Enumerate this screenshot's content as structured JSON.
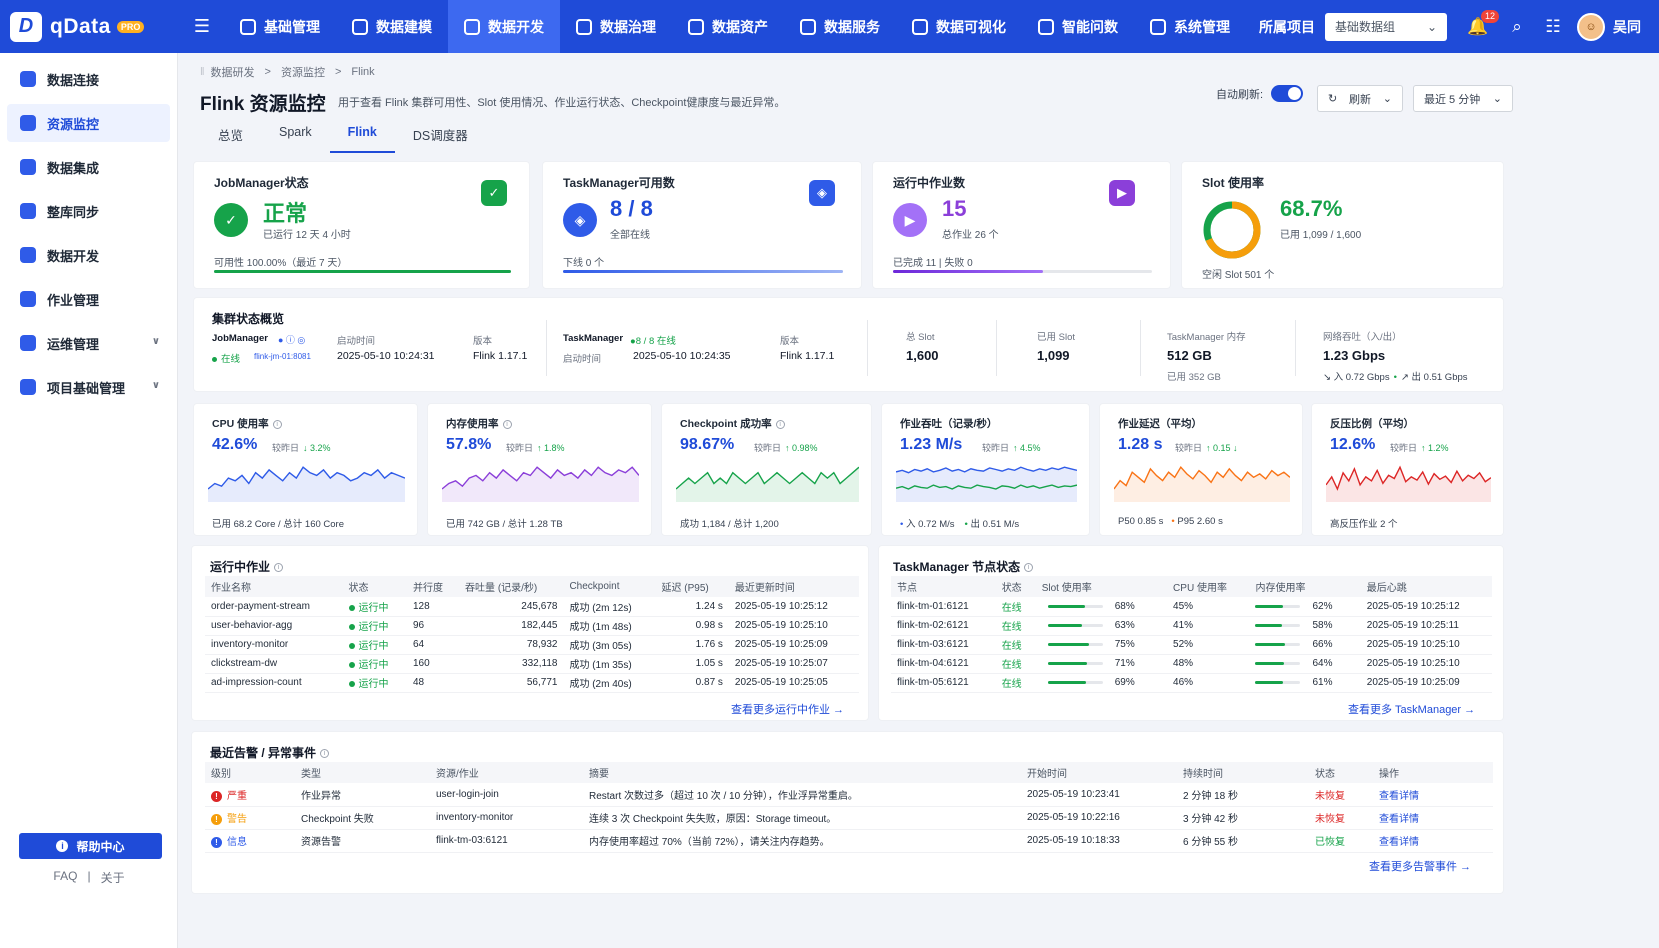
{
  "app": {
    "name": "qData",
    "pro_badge": "PRO",
    "logo_letter": "D"
  },
  "nav": [
    {
      "label": "基础管理"
    },
    {
      "label": "数据建模"
    },
    {
      "label": "数据开发",
      "active": true
    },
    {
      "label": "数据治理"
    },
    {
      "label": "数据资产"
    },
    {
      "label": "数据服务"
    },
    {
      "label": "数据可视化"
    },
    {
      "label": "智能问数"
    },
    {
      "label": "系统管理"
    }
  ],
  "topright": {
    "project_label": "所属项目",
    "project_value": "基础数据组",
    "notif_count": "12",
    "user_name": "吴同"
  },
  "sidebar": {
    "items": [
      {
        "label": "数据连接"
      },
      {
        "label": "资源监控",
        "active": true
      },
      {
        "label": "数据集成"
      },
      {
        "label": "整库同步"
      },
      {
        "label": "数据开发"
      },
      {
        "label": "作业管理"
      },
      {
        "label": "运维管理",
        "expandable": true
      },
      {
        "label": "项目基础管理",
        "expandable": true
      }
    ],
    "help": "帮助中心",
    "faq": "FAQ",
    "sep": "|",
    "about": "关于"
  },
  "page": {
    "breadcrumb": [
      "数据研发",
      "资源监控",
      "Flink"
    ],
    "title": "Flink 资源监控",
    "subtitle": "用于查看 Flink 集群可用性、Slot 使用情况、作业运行状态、Checkpoint健康度与最近异常。",
    "tabs": [
      {
        "label": "总览"
      },
      {
        "label": "Spark"
      },
      {
        "label": "Flink",
        "active": true
      },
      {
        "label": "DS调度器"
      }
    ],
    "auto_refresh_label": "自动刷新:",
    "refresh_label": "刷新",
    "time_range": "最近 5 分钟"
  },
  "kpis": {
    "jobmanager": {
      "title": "JobManager状态",
      "status": "正常",
      "uptime": "已运行 12 天 4 小时",
      "availability": "可用性 100.00%（最近 7 天）",
      "progress": 1.0
    },
    "taskmanager": {
      "title": "TaskManager可用数",
      "value": "8 / 8",
      "note": "全部在线",
      "offline": "下线 0 个",
      "progress": 1.0
    },
    "jobs": {
      "title": "运行中作业数",
      "value": "15",
      "total": "总作业 26 个",
      "done": "已完成 11 | 失败 0",
      "progress": 0.58
    },
    "slot": {
      "title": "Slot 使用率",
      "value": "68.7%",
      "used": "已用 1,099 / 1,600",
      "free": "空闲 Slot 501 个",
      "ratio": 0.687
    }
  },
  "overview": {
    "title": "集群状态概览",
    "jm_label": "JobManager",
    "jm_status": "在线",
    "jm_host": "flink-jm-01:8081",
    "start_label": "启动时间",
    "jm_start": "2025-05-10 10:24:31",
    "version_label": "版本",
    "jm_version": "Flink 1.17.1",
    "tm_label": "TaskManager",
    "tm_online": "8 / 8 在线",
    "tm_start_label": "启动时间",
    "tm_start": "2025-05-10 10:24:35",
    "tm_version_label": "版本",
    "tm_version": "Flink 1.17.1",
    "total_slot_label": "总 Slot",
    "total_slot": "1,600",
    "used_slot_label": "已用 Slot",
    "used_slot": "1,099",
    "tm_mem_label": "TaskManager 内存",
    "tm_mem": "512 GB",
    "tm_mem_used": "已用 352 GB",
    "net_label": "网络吞吐（入/出）",
    "net_val": "1.23 Gbps",
    "net_in": "入 0.72 Gbps",
    "net_out": "出 0.51 Gbps"
  },
  "metrics": [
    {
      "title": "CPU 使用率",
      "value": "42.6%",
      "cmp_label": "较昨日",
      "delta": "↓ 3.2%",
      "foot": "已用 68.2 Core / 总计 160 Core",
      "color": "#2f5be8",
      "series": [
        [
          38,
          40,
          39,
          42,
          41,
          43,
          40,
          44,
          42,
          45,
          43,
          41,
          44,
          42,
          46,
          44,
          43,
          45,
          42,
          44,
          43,
          41,
          42,
          44,
          43,
          45,
          42,
          44,
          43,
          42
        ]
      ]
    },
    {
      "title": "内存使用率",
      "value": "57.8%",
      "cmp_label": "较昨日",
      "delta": "↑ 1.8%",
      "foot": "已用 742 GB / 总计 1.28 TB",
      "color": "#8b3fd9",
      "series": [
        [
          52,
          54,
          55,
          53,
          56,
          57,
          55,
          58,
          56,
          59,
          57,
          55,
          58,
          57,
          60,
          58,
          56,
          59,
          57,
          58,
          56,
          59,
          57,
          60,
          58,
          57,
          59,
          58,
          60,
          57
        ]
      ]
    },
    {
      "title": "Checkpoint 成功率",
      "value": "98.67%",
      "cmp_label": "较昨日",
      "delta": "↑ 0.98%",
      "foot": "成功 1,184 / 总计 1,200",
      "color": "#16a34a",
      "series": [
        [
          96,
          97,
          98,
          97,
          98,
          99,
          97,
          98,
          97,
          99,
          98,
          97,
          98,
          99,
          97,
          98,
          99,
          98,
          97,
          98,
          99,
          98,
          97,
          99,
          98,
          99,
          97,
          98,
          99,
          100
        ]
      ]
    },
    {
      "title": "作业吞吐（记录/秒）",
      "value": "1.23 M/s",
      "cmp_label": "较昨日",
      "delta": "↑ 4.5%",
      "foot_in": "入 0.72 M/s",
      "foot_out": "出 0.51 M/s",
      "color": "#2f5be8",
      "series": [
        [
          0.72,
          0.74,
          0.71,
          0.75,
          0.73,
          0.76,
          0.72,
          0.74,
          0.77,
          0.73,
          0.75,
          0.72,
          0.76,
          0.74,
          0.73,
          0.77,
          0.75,
          0.73,
          0.76,
          0.74,
          0.78,
          0.75,
          0.73,
          0.76,
          0.74,
          0.77,
          0.75,
          0.78,
          0.76,
          0.74
        ],
        [
          0.51,
          0.53,
          0.5,
          0.54,
          0.52,
          0.51,
          0.55,
          0.52,
          0.53,
          0.5,
          0.54,
          0.52,
          0.51,
          0.55,
          0.53,
          0.52,
          0.5,
          0.54,
          0.53,
          0.51,
          0.55,
          0.52,
          0.54,
          0.51,
          0.53,
          0.55,
          0.52,
          0.54,
          0.53,
          0.55
        ]
      ],
      "series2_color": "#16a34a"
    },
    {
      "title": "作业延迟（平均）",
      "value": "1.28 s",
      "cmp_label": "较昨日",
      "delta": "↑ 0.15 ↓",
      "foot_p50": "P50 0.85 s",
      "foot_p95": "P95 2.60 s",
      "color": "#f97316",
      "series": [
        [
          1.2,
          1.25,
          1.22,
          1.3,
          1.27,
          1.24,
          1.32,
          1.28,
          1.25,
          1.3,
          1.27,
          1.33,
          1.29,
          1.26,
          1.31,
          1.28,
          1.24,
          1.3,
          1.27,
          1.32,
          1.28,
          1.25,
          1.3,
          1.27,
          1.29,
          1.26,
          1.31,
          1.28,
          1.3,
          1.27
        ]
      ]
    },
    {
      "title": "反压比例（平均）",
      "value": "12.6%",
      "cmp_label": "较昨日",
      "delta": "↑ 1.2%",
      "foot": "高反压作业 2 个",
      "color": "#dc2626",
      "series": [
        [
          12,
          13,
          11.5,
          13.5,
          12.5,
          14,
          12,
          13,
          12.5,
          13.8,
          12.2,
          13.2,
          12.8,
          14.2,
          12.4,
          13,
          12.6,
          13.6,
          12.1,
          13.4,
          12.7,
          13.1,
          12.3,
          13.7,
          12.5,
          13.2,
          12.8,
          13.5,
          12.4,
          12.9
        ]
      ]
    }
  ],
  "running_jobs": {
    "title": "运行中作业",
    "headers": [
      "作业名称",
      "状态",
      "并行度",
      "吞吐量 (记录/秒)",
      "Checkpoint",
      "延迟 (P95)",
      "最近更新时间"
    ],
    "rows": [
      [
        "order-payment-stream",
        "运行中",
        "128",
        "245,678",
        "成功 (2m 12s)",
        "1.24 s",
        "2025-05-19 10:25:12"
      ],
      [
        "user-behavior-agg",
        "运行中",
        "96",
        "182,445",
        "成功 (1m 48s)",
        "0.98 s",
        "2025-05-19 10:25:10"
      ],
      [
        "inventory-monitor",
        "运行中",
        "64",
        "78,932",
        "成功 (3m 05s)",
        "1.76 s",
        "2025-05-19 10:25:09"
      ],
      [
        "clickstream-dw",
        "运行中",
        "160",
        "332,118",
        "成功 (1m 35s)",
        "1.05 s",
        "2025-05-19 10:25:07"
      ],
      [
        "ad-impression-count",
        "运行中",
        "48",
        "56,771",
        "成功 (2m 40s)",
        "0.87 s",
        "2025-05-19 10:25:05"
      ]
    ],
    "more": "查看更多运行中作业 →"
  },
  "tm_nodes": {
    "title": "TaskManager 节点状态",
    "headers": [
      "节点",
      "状态",
      "Slot 使用率",
      "CPU 使用率",
      "内存使用率",
      "最后心跳"
    ],
    "rows": [
      {
        "node": "flink-tm-01:6121",
        "status": "在线",
        "slot": "68%",
        "slot_v": 0.68,
        "cpu": "45%",
        "mem": "62%",
        "mem_v": 0.62,
        "hb": "2025-05-19 10:25:12"
      },
      {
        "node": "flink-tm-02:6121",
        "status": "在线",
        "slot": "63%",
        "slot_v": 0.63,
        "cpu": "41%",
        "mem": "58%",
        "mem_v": 0.58,
        "hb": "2025-05-19 10:25:11"
      },
      {
        "node": "flink-tm-03:6121",
        "status": "在线",
        "slot": "75%",
        "slot_v": 0.75,
        "cpu": "52%",
        "mem": "66%",
        "mem_v": 0.66,
        "hb": "2025-05-19 10:25:10"
      },
      {
        "node": "flink-tm-04:6121",
        "status": "在线",
        "slot": "71%",
        "slot_v": 0.71,
        "cpu": "48%",
        "mem": "64%",
        "mem_v": 0.64,
        "hb": "2025-05-19 10:25:10"
      },
      {
        "node": "flink-tm-05:6121",
        "status": "在线",
        "slot": "69%",
        "slot_v": 0.69,
        "cpu": "46%",
        "mem": "61%",
        "mem_v": 0.61,
        "hb": "2025-05-19 10:25:09"
      }
    ],
    "more": "查看更多 TaskManager →"
  },
  "alerts": {
    "title": "最近告警 / 异常事件",
    "headers": [
      "级别",
      "类型",
      "资源/作业",
      "摘要",
      "开始时间",
      "持续时间",
      "状态",
      "操作"
    ],
    "rows": [
      {
        "level": "严重",
        "level_color": "#dc2626",
        "type": "作业异常",
        "res": "user-login-join",
        "summary": "Restart 次数过多（超过 10 次 / 10 分钟），作业浮异常重启。",
        "start": "2025-05-19 10:23:41",
        "dur": "2 分钟 18 秒",
        "status": "未恢复",
        "status_color": "#dc2626",
        "op": "查看详情"
      },
      {
        "level": "警告",
        "level_color": "#f59e0b",
        "type": "Checkpoint 失败",
        "res": "inventory-monitor",
        "summary": "连续 3 次 Checkpoint 失失败，原因：Storage timeout。",
        "start": "2025-05-19 10:22:16",
        "dur": "3 分钟 42 秒",
        "status": "未恢复",
        "status_color": "#dc2626",
        "op": "查看详情"
      },
      {
        "level": "信息",
        "level_color": "#2f5be8",
        "type": "资源告警",
        "res": "flink-tm-03:6121",
        "summary": "内存使用率超过 70%（当前 72%），请关注内存趋势。",
        "start": "2025-05-19 10:18:33",
        "dur": "6 分钟 55 秒",
        "status": "已恢复",
        "status_color": "#16a34a",
        "op": "查看详情"
      }
    ],
    "more": "查看更多告警事件 →"
  }
}
